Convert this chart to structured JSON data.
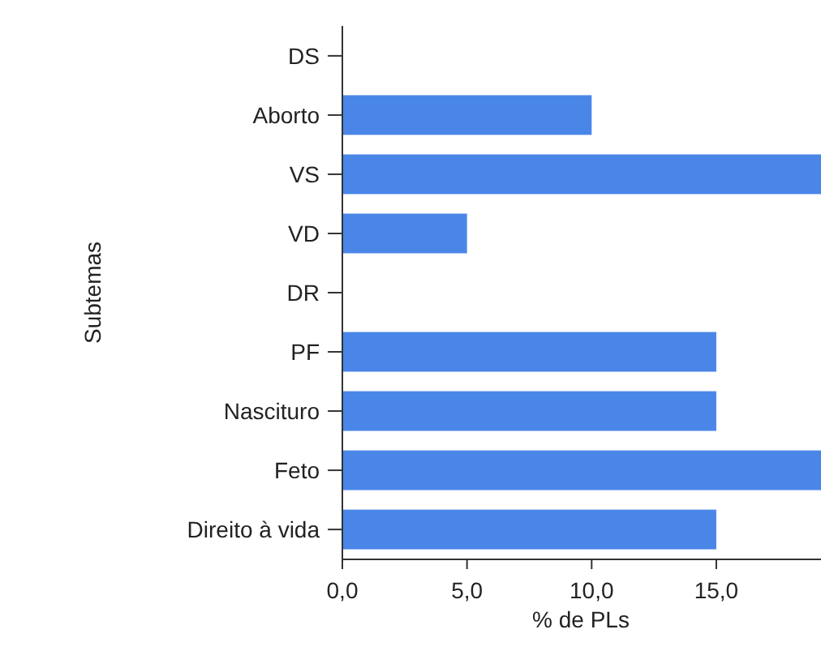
{
  "chart_data": {
    "type": "bar",
    "orientation": "horizontal",
    "xlabel": "% de PLs",
    "ylabel": "Subtemas",
    "categories": [
      "DS",
      "Aborto",
      "VS",
      "VD",
      "DR",
      "PF",
      "Nascituro",
      "Feto",
      "Direito à vida"
    ],
    "values": [
      0,
      10,
      19.2,
      5,
      0,
      15,
      15,
      19.2,
      15
    ],
    "color": "#4a86e8",
    "xlim": [
      0,
      19.2
    ],
    "xticks": [
      {
        "value": 0,
        "label": "0,0"
      },
      {
        "value": 5,
        "label": "5,0"
      },
      {
        "value": 10,
        "label": "10,0"
      },
      {
        "value": 15,
        "label": "15,0"
      }
    ],
    "grid": false
  }
}
